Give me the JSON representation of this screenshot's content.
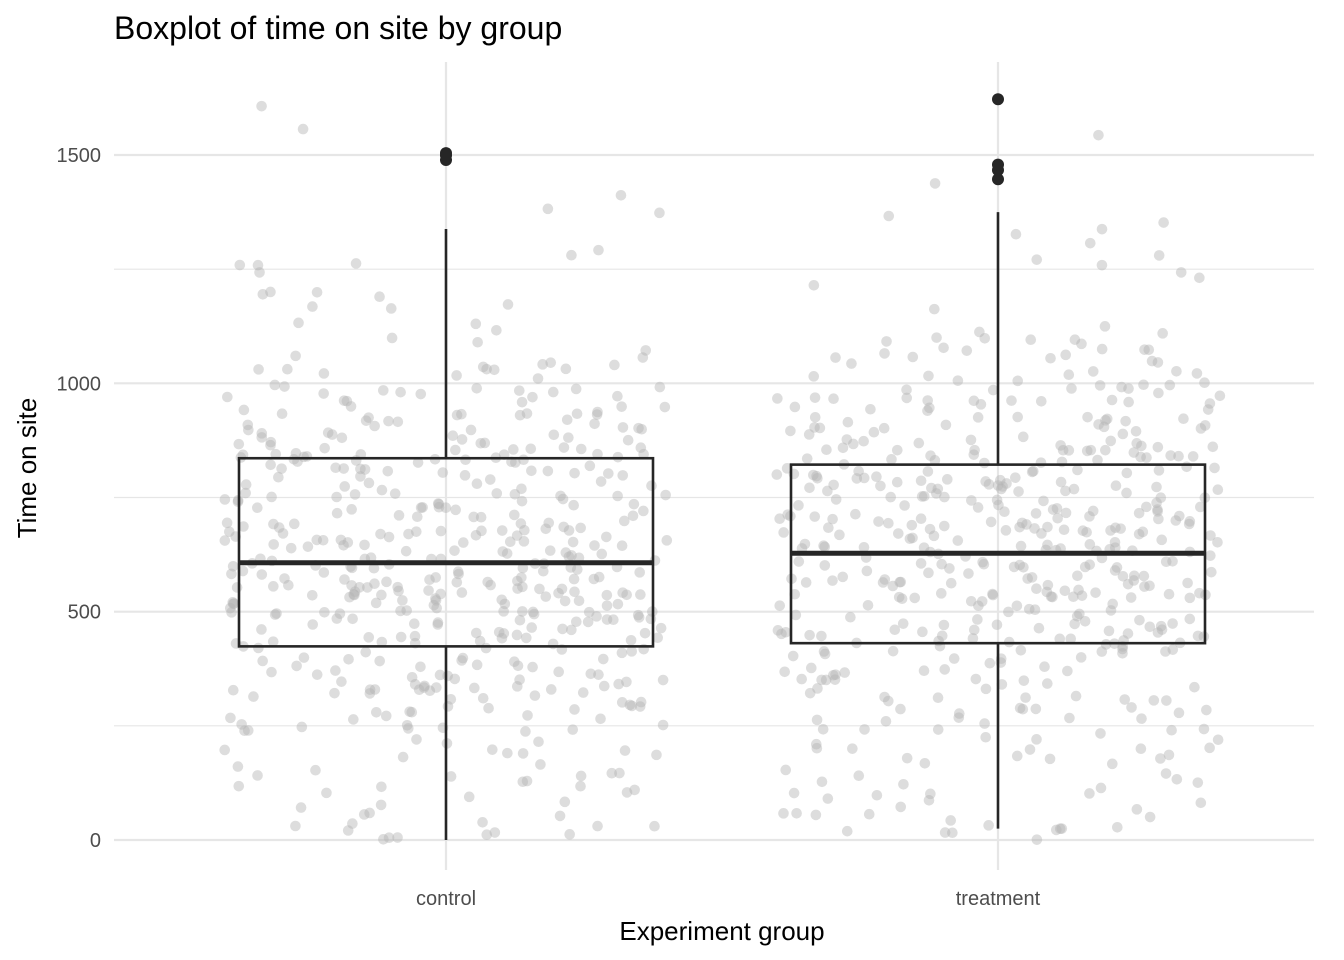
{
  "chart_data": {
    "type": "boxplot",
    "title": "Boxplot of time on site by group",
    "xlabel": "Experiment group",
    "ylabel": "Time on site",
    "categories": [
      "control",
      "treatment"
    ],
    "ylim": [
      -70,
      1700
    ],
    "yticks": [
      0,
      500,
      1000,
      1500
    ],
    "grid": true,
    "colors": {
      "box": "#262626",
      "points": "#b3b3b3",
      "grid": "#e6e6e6",
      "outlier": "#262626"
    },
    "boxes": [
      {
        "group": "control",
        "q1": 424,
        "median": 607,
        "q3": 836,
        "whisker_low": 0,
        "whisker_high": 1338,
        "outliers": [
          1489,
          1499,
          1504
        ]
      },
      {
        "group": "treatment",
        "q1": 431,
        "median": 628,
        "q3": 822,
        "whisker_low": 25,
        "whisker_high": 1375,
        "outliers": [
          1447,
          1467,
          1479,
          1622
        ]
      }
    ],
    "jitter_points": {
      "per_group": 500,
      "alpha": 0.45,
      "range": [
        0,
        1620
      ]
    }
  }
}
